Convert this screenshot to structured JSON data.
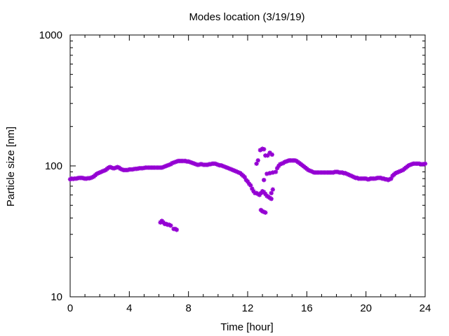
{
  "chart_data": {
    "type": "scatter",
    "title": "Modes location (3/19/19)",
    "xlabel": "Time [hour]",
    "ylabel": "Particle size [nm]",
    "xlim": [
      0,
      24
    ],
    "ylim": [
      10,
      1000
    ],
    "y_scale": "log",
    "x_ticks": [
      0,
      4,
      8,
      12,
      16,
      20,
      24
    ],
    "x_tick_labels": [
      "0",
      "4",
      "8",
      "12",
      "16",
      "20",
      "24"
    ],
    "y_ticks": [
      10,
      100,
      1000
    ],
    "y_tick_labels": [
      "10",
      "100",
      "1000"
    ],
    "grid": false,
    "marker_color": "#9400d3",
    "series": [
      {
        "points": [
          [
            0.0,
            79
          ],
          [
            0.1,
            80
          ],
          [
            0.2,
            79.5
          ],
          [
            0.3,
            80
          ],
          [
            0.4,
            80
          ],
          [
            0.5,
            80.5
          ],
          [
            0.6,
            81
          ],
          [
            0.7,
            81
          ],
          [
            0.8,
            81
          ],
          [
            0.9,
            80.5
          ],
          [
            1.0,
            80
          ],
          [
            1.1,
            80
          ],
          [
            1.2,
            80.5
          ],
          [
            1.3,
            80.5
          ],
          [
            1.4,
            81
          ],
          [
            1.5,
            82
          ],
          [
            1.6,
            83
          ],
          [
            1.7,
            85
          ],
          [
            1.8,
            87
          ],
          [
            1.9,
            88
          ],
          [
            2.0,
            89
          ],
          [
            2.1,
            90
          ],
          [
            2.2,
            91
          ],
          [
            2.3,
            92
          ],
          [
            2.4,
            93
          ],
          [
            2.5,
            95
          ],
          [
            2.6,
            97
          ],
          [
            2.7,
            98
          ],
          [
            2.8,
            97
          ],
          [
            2.9,
            96
          ],
          [
            3.0,
            96
          ],
          [
            3.1,
            97
          ],
          [
            3.2,
            98
          ],
          [
            3.3,
            97
          ],
          [
            3.4,
            95
          ],
          [
            3.5,
            94
          ],
          [
            3.6,
            93
          ],
          [
            3.7,
            93
          ],
          [
            3.8,
            93
          ],
          [
            3.9,
            93
          ],
          [
            4.0,
            94
          ],
          [
            4.1,
            94
          ],
          [
            4.2,
            94
          ],
          [
            4.3,
            94.5
          ],
          [
            4.4,
            95
          ],
          [
            4.5,
            95
          ],
          [
            4.6,
            95.5
          ],
          [
            4.7,
            96
          ],
          [
            4.8,
            96
          ],
          [
            4.9,
            96
          ],
          [
            5.0,
            96.5
          ],
          [
            5.1,
            97
          ],
          [
            5.2,
            97
          ],
          [
            5.3,
            97
          ],
          [
            5.4,
            97
          ],
          [
            5.5,
            97
          ],
          [
            5.6,
            97
          ],
          [
            5.7,
            97
          ],
          [
            5.8,
            97
          ],
          [
            5.9,
            97
          ],
          [
            6.0,
            97
          ],
          [
            6.1,
            97
          ],
          [
            6.2,
            97
          ],
          [
            6.3,
            98
          ],
          [
            6.4,
            99
          ],
          [
            6.5,
            100
          ],
          [
            6.6,
            101
          ],
          [
            6.7,
            102
          ],
          [
            6.8,
            103
          ],
          [
            6.9,
            105
          ],
          [
            7.0,
            106
          ],
          [
            7.1,
            107
          ],
          [
            7.2,
            108
          ],
          [
            7.3,
            109
          ],
          [
            7.4,
            109
          ],
          [
            7.5,
            109
          ],
          [
            7.6,
            109
          ],
          [
            7.7,
            109
          ],
          [
            7.8,
            109
          ],
          [
            7.9,
            108
          ],
          [
            8.0,
            108
          ],
          [
            8.1,
            107
          ],
          [
            8.2,
            106
          ],
          [
            8.3,
            105
          ],
          [
            8.4,
            104
          ],
          [
            8.5,
            103
          ],
          [
            8.6,
            102
          ],
          [
            8.7,
            102
          ],
          [
            8.8,
            103
          ],
          [
            8.9,
            103
          ],
          [
            9.0,
            102
          ],
          [
            9.1,
            102
          ],
          [
            9.2,
            102
          ],
          [
            9.3,
            102
          ],
          [
            9.4,
            103
          ],
          [
            9.5,
            103
          ],
          [
            9.6,
            104
          ],
          [
            9.7,
            104
          ],
          [
            9.8,
            104
          ],
          [
            9.9,
            103
          ],
          [
            10.0,
            102
          ],
          [
            10.1,
            101
          ],
          [
            10.2,
            101
          ],
          [
            10.3,
            100
          ],
          [
            10.4,
            99
          ],
          [
            10.5,
            98
          ],
          [
            10.6,
            97
          ],
          [
            10.7,
            96
          ],
          [
            10.8,
            95
          ],
          [
            10.9,
            94
          ],
          [
            11.0,
            93
          ],
          [
            11.1,
            92
          ],
          [
            11.2,
            91
          ],
          [
            11.3,
            90
          ],
          [
            11.4,
            89
          ],
          [
            11.5,
            88
          ],
          [
            11.6,
            86
          ],
          [
            11.7,
            84
          ],
          [
            11.8,
            82
          ],
          [
            11.9,
            78
          ],
          [
            12.0,
            76
          ],
          [
            12.1,
            73
          ],
          [
            12.2,
            71
          ],
          [
            12.3,
            67
          ],
          [
            12.4,
            64
          ],
          [
            12.5,
            62
          ],
          [
            12.6,
            62
          ],
          [
            12.7,
            61
          ],
          [
            12.8,
            60
          ],
          [
            12.9,
            62
          ],
          [
            13.0,
            64
          ],
          [
            13.1,
            63
          ],
          [
            13.2,
            61
          ],
          [
            13.3,
            59
          ],
          [
            13.4,
            58
          ],
          [
            13.5,
            57
          ],
          [
            13.6,
            56
          ],
          [
            12.6,
            104
          ],
          [
            12.7,
            110
          ],
          [
            12.85,
            132
          ],
          [
            13.0,
            135
          ],
          [
            13.1,
            134
          ],
          [
            13.2,
            120
          ],
          [
            13.35,
            120
          ],
          [
            13.5,
            126
          ],
          [
            13.65,
            122
          ],
          [
            13.1,
            78
          ],
          [
            13.3,
            87
          ],
          [
            13.5,
            88
          ],
          [
            13.7,
            89
          ],
          [
            13.9,
            90
          ],
          [
            14.0,
            96
          ],
          [
            14.1,
            100
          ],
          [
            14.2,
            103
          ],
          [
            14.3,
            104
          ],
          [
            14.4,
            105
          ],
          [
            13.6,
            62
          ],
          [
            13.7,
            66
          ],
          [
            14.5,
            107
          ],
          [
            14.6,
            108
          ],
          [
            14.7,
            109
          ],
          [
            14.8,
            110
          ],
          [
            14.9,
            110
          ],
          [
            15.0,
            110
          ],
          [
            15.1,
            110
          ],
          [
            15.2,
            110
          ],
          [
            15.3,
            109
          ],
          [
            15.4,
            107
          ],
          [
            15.5,
            105
          ],
          [
            15.6,
            103
          ],
          [
            15.7,
            101
          ],
          [
            15.8,
            99
          ],
          [
            15.9,
            97
          ],
          [
            16.0,
            95
          ],
          [
            16.1,
            93
          ],
          [
            16.2,
            92
          ],
          [
            16.3,
            91
          ],
          [
            16.4,
            90
          ],
          [
            16.5,
            89
          ],
          [
            16.6,
            89
          ],
          [
            16.7,
            89
          ],
          [
            16.8,
            89
          ],
          [
            16.9,
            89
          ],
          [
            17.0,
            89
          ],
          [
            17.1,
            89
          ],
          [
            17.2,
            89
          ],
          [
            17.3,
            89
          ],
          [
            17.4,
            89
          ],
          [
            17.5,
            89
          ],
          [
            17.6,
            89
          ],
          [
            17.7,
            89
          ],
          [
            17.8,
            89
          ],
          [
            17.9,
            90
          ],
          [
            18.0,
            90
          ],
          [
            18.1,
            90
          ],
          [
            18.2,
            89
          ],
          [
            18.3,
            89
          ],
          [
            18.4,
            89
          ],
          [
            18.5,
            88
          ],
          [
            18.6,
            88
          ],
          [
            18.7,
            87
          ],
          [
            18.8,
            86
          ],
          [
            18.9,
            85
          ],
          [
            19.0,
            84
          ],
          [
            19.1,
            83
          ],
          [
            19.2,
            82
          ],
          [
            19.3,
            81
          ],
          [
            19.4,
            81
          ],
          [
            19.5,
            80
          ],
          [
            19.6,
            80
          ],
          [
            19.7,
            80
          ],
          [
            19.8,
            80
          ],
          [
            19.9,
            80
          ],
          [
            20.0,
            80
          ],
          [
            20.1,
            79
          ],
          [
            20.2,
            79
          ],
          [
            20.3,
            80
          ],
          [
            20.4,
            80
          ],
          [
            20.5,
            80
          ],
          [
            20.6,
            80
          ],
          [
            20.7,
            80.5
          ],
          [
            20.8,
            81
          ],
          [
            20.9,
            81
          ],
          [
            21.0,
            81
          ],
          [
            21.1,
            80
          ],
          [
            21.2,
            80
          ],
          [
            21.3,
            79
          ],
          [
            21.4,
            79
          ],
          [
            21.5,
            78
          ],
          [
            21.6,
            79
          ],
          [
            21.7,
            80
          ],
          [
            21.8,
            84
          ],
          [
            21.9,
            86
          ],
          [
            22.0,
            88
          ],
          [
            22.1,
            89
          ],
          [
            22.2,
            90
          ],
          [
            22.3,
            91
          ],
          [
            22.4,
            92
          ],
          [
            22.5,
            93
          ],
          [
            22.6,
            95
          ],
          [
            22.7,
            97
          ],
          [
            22.8,
            99
          ],
          [
            22.9,
            101
          ],
          [
            23.0,
            102
          ],
          [
            23.1,
            103
          ],
          [
            23.2,
            104
          ],
          [
            23.3,
            104
          ],
          [
            23.4,
            104
          ],
          [
            23.5,
            104
          ],
          [
            23.6,
            104
          ],
          [
            23.7,
            103
          ],
          [
            23.8,
            103
          ],
          [
            23.9,
            103
          ],
          [
            24.0,
            104
          ],
          [
            6.1,
            37
          ],
          [
            6.2,
            38
          ],
          [
            6.3,
            37
          ],
          [
            6.4,
            36
          ],
          [
            6.5,
            36
          ],
          [
            6.6,
            35.5
          ],
          [
            6.7,
            35.5
          ],
          [
            6.8,
            35
          ],
          [
            7.0,
            33
          ],
          [
            7.1,
            33
          ],
          [
            7.2,
            32.5
          ],
          [
            12.9,
            46
          ],
          [
            13.0,
            45
          ],
          [
            13.1,
            44.5
          ],
          [
            13.2,
            44
          ]
        ]
      }
    ]
  }
}
